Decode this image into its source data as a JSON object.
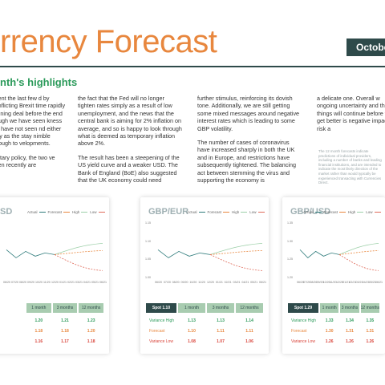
{
  "header": {
    "title": "rrency Forecast",
    "badge": "October"
  },
  "section": {
    "heading": "nth's highlights"
  },
  "columns": [
    [
      "spent the last few d by conflicting Brexit time rapidly running deal before the end hough we have seen kness we have not seen nd either way as the stay nimble enough to velopments.",
      "metary policy, the two ve seen recently are"
    ],
    [
      "the fact that the Fed will no longer tighten rates simply as a result of low unemployment, and the news that the central bank is aiming for 2% inflation on average, and so is happy to look through what is deemed as temporary inflation above 2%.",
      "The result has been a steepening of the US yield curve and a weaker USD. The Bank of England (BoE) also suggested that the UK economy could need"
    ],
    [
      "further stimulus, reinforcing its dovish tone. Additionally, we are still getting some mixed messages around negative interest rates which is leading to some GBP volatility.",
      "The number of cases of coronavirus have increased sharply in both the UK and in Europe, and restrictions have subsequently tightened. The balancing act between stemming the virus and supporting the economy is"
    ],
    [
      "a delicate one. Overall w ongoing uncertainty and that things will continue before they get better is negative impact on risk a"
    ]
  ],
  "note": "The 12 month forecasts indicate predictions of individual providers, including a number of banks and leading financial institutions, and are intended to indicate the most likely direction of the market rather than would typically be experienced transacting with Currencies Direct.",
  "cards": [
    {
      "title": "SD",
      "legend": [
        "Actual",
        "Forecast",
        "High",
        "Low"
      ],
      "xticks": [
        "06/20",
        "07/20",
        "08/20",
        "09/20",
        "10/20",
        "11/20",
        "12/20",
        "01/21",
        "02/21",
        "03/21",
        "04/21",
        "05/21",
        "06/21"
      ],
      "table": {
        "headers": [
          "1 month",
          "3 months",
          "12 months"
        ],
        "rows": [
          {
            "values": [
              "1.20",
              "1.21",
              "1.23"
            ]
          },
          {
            "values": [
              "1.18",
              "1.18",
              "1.20"
            ]
          },
          {
            "values": [
              "1.16",
              "1.17",
              "1.18"
            ]
          }
        ]
      }
    },
    {
      "title": "GBP/EUR",
      "legend": [
        "Actual",
        "Forecast",
        "High",
        "Low"
      ],
      "yticks": [
        "1.15",
        "1.10",
        "1.05",
        "1.00"
      ],
      "xticks": [
        "06/20",
        "07/20",
        "08/20",
        "09/20",
        "10/20",
        "11/20",
        "12/20",
        "01/21",
        "02/21",
        "03/21",
        "04/21",
        "05/21",
        "06/21"
      ],
      "table": {
        "spot": "Spot 1.10",
        "headers": [
          "1 month",
          "3 months",
          "12 months"
        ],
        "rows": [
          {
            "label": "Variance High",
            "values": [
              "1.13",
              "1.13",
              "1.14"
            ]
          },
          {
            "label": "Forecast",
            "values": [
              "1.10",
              "1.11",
              "1.11"
            ]
          },
          {
            "label": "Variance Low",
            "values": [
              "1.08",
              "1.07",
              "1.06"
            ]
          }
        ]
      }
    },
    {
      "title": "GBP/USD",
      "legend": [
        "Actual",
        "Forecast",
        "High",
        "Low"
      ],
      "yticks": [
        "1.35",
        "1.30",
        "1.25",
        "1.20"
      ],
      "xticks": [
        "06/20",
        "07/20",
        "08/20",
        "09/20",
        "10/20",
        "11/20",
        "12/20",
        "01/21",
        "02/21",
        "03/21",
        "04/21",
        "05/21",
        "06/21"
      ],
      "table": {
        "spot": "Spot 1.29",
        "headers": [
          "1 month",
          "3 months",
          "12 months"
        ],
        "rows": [
          {
            "label": "Variance High",
            "values": [
              "1.33",
              "1.34",
              "1.35"
            ]
          },
          {
            "label": "Forecast",
            "values": [
              "1.30",
              "1.31",
              "1.31"
            ]
          },
          {
            "label": "Variance Low",
            "values": [
              "1.26",
              "1.26",
              "1.26"
            ]
          }
        ]
      }
    }
  ]
}
